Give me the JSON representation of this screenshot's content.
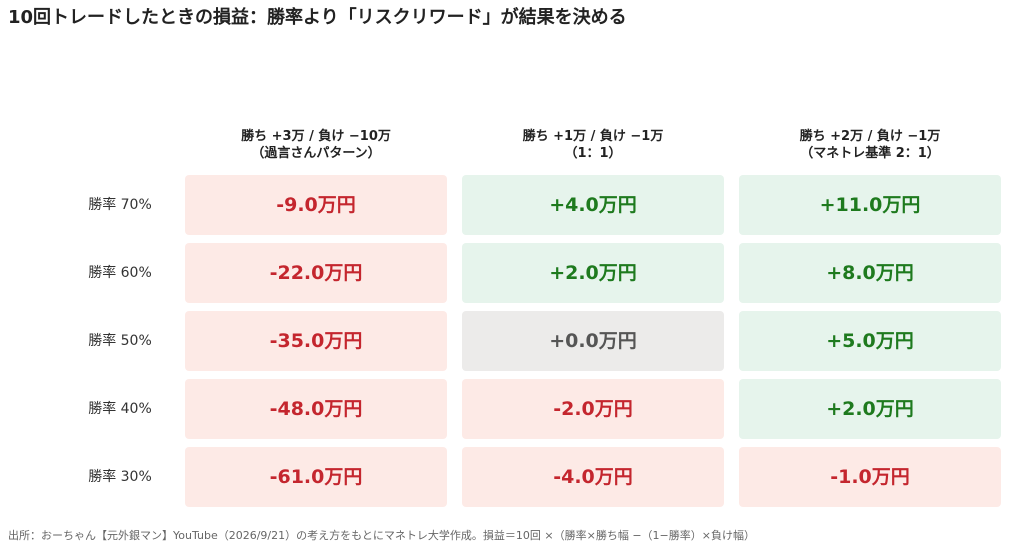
{
  "chart_data": {
    "type": "table",
    "title": "10回トレードしたときの損益：勝率より「リスクリワード」が結果を決める",
    "columns": [
      {
        "line1": "勝ち +3万 / 負け −10万",
        "line2": "（過言さんパターン）"
      },
      {
        "line1": "勝ち +1万 / 負け −1万",
        "line2": "（1：1）"
      },
      {
        "line1": "勝ち +2万 / 負け −1万",
        "line2": "（マネトレ基準 2：1）"
      }
    ],
    "rows": [
      {
        "label": "勝率 70%",
        "values": [
          -9.0,
          4.0,
          11.0
        ],
        "display": [
          "-9.0万円",
          "+4.0万円",
          "+11.0万円"
        ]
      },
      {
        "label": "勝率 60%",
        "values": [
          -22.0,
          2.0,
          8.0
        ],
        "display": [
          "-22.0万円",
          "+2.0万円",
          "+8.0万円"
        ]
      },
      {
        "label": "勝率 50%",
        "values": [
          -35.0,
          0.0,
          5.0
        ],
        "display": [
          "-35.0万円",
          "+0.0万円",
          "+5.0万円"
        ]
      },
      {
        "label": "勝率 40%",
        "values": [
          -48.0,
          -2.0,
          2.0
        ],
        "display": [
          "-48.0万円",
          "-2.0万円",
          "+2.0万円"
        ]
      },
      {
        "label": "勝率 30%",
        "values": [
          -61.0,
          -4.0,
          -1.0
        ],
        "display": [
          "-61.0万円",
          "-4.0万円",
          "-1.0万円"
        ]
      }
    ],
    "unit": "万円",
    "colors": {
      "negative_bg": "#fdeae6",
      "negative_text": "#c4262e",
      "positive_bg": "#e6f4ec",
      "positive_text": "#1e7a1e",
      "zero_bg": "#ecebea",
      "zero_text": "#555555"
    }
  },
  "footer": "出所：おーちゃん【元外銀マン】YouTube（2026/9/21）の考え方をもとにマネトレ大学作成。損益＝10回 ×（勝率×勝ち幅 −（1−勝率）×負け幅）"
}
